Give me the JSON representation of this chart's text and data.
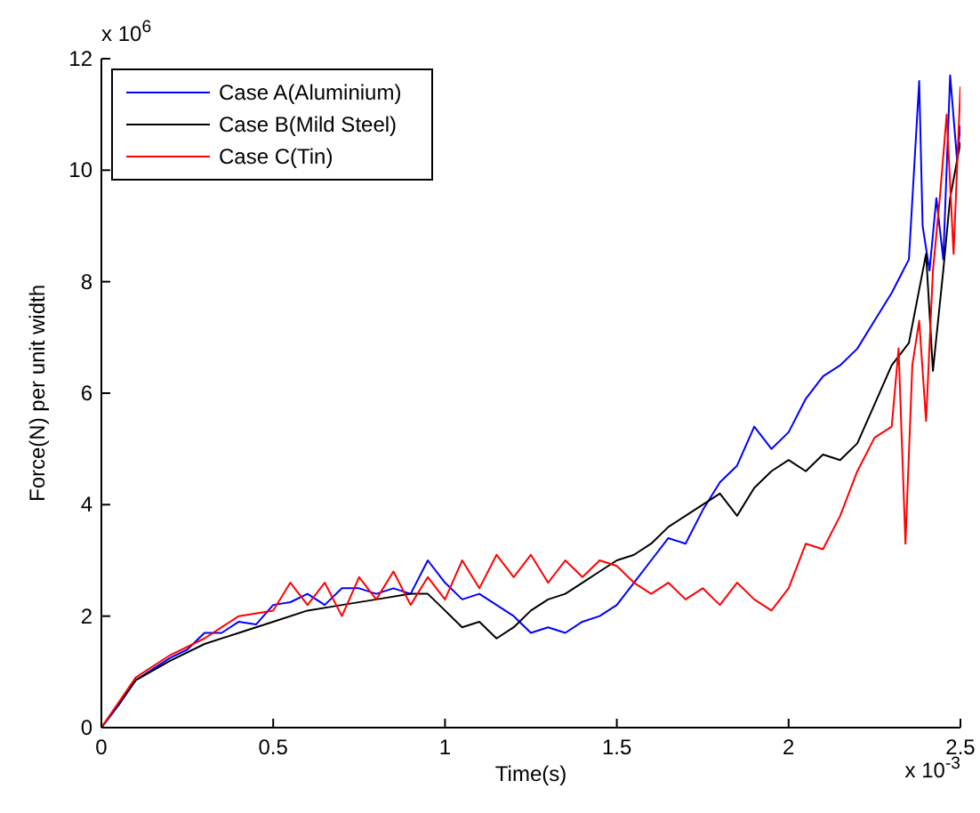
{
  "chart_data": {
    "type": "line",
    "xlabel": "Time(s)",
    "ylabel": "Force(N) per unit width",
    "annotations": [
      "x 10$^{6}$",
      "x 10$^{-3}$"
    ],
    "xlim": [
      0,
      2.5
    ],
    "xticks": [
      0,
      0.5,
      1,
      1.5,
      2,
      2.5
    ],
    "ylim": [
      0,
      12
    ],
    "yticks": [
      0,
      2,
      4,
      6,
      8,
      10,
      12
    ],
    "legend": "top left",
    "grid": false,
    "series": [
      {
        "name": "Case A(Aluminium)",
        "color": "#0000ff",
        "x": [
          0,
          0.05,
          0.1,
          0.15,
          0.2,
          0.25,
          0.3,
          0.35,
          0.4,
          0.45,
          0.5,
          0.55,
          0.6,
          0.65,
          0.7,
          0.75,
          0.8,
          0.85,
          0.9,
          0.95,
          1.0,
          1.05,
          1.1,
          1.15,
          1.2,
          1.25,
          1.3,
          1.35,
          1.4,
          1.45,
          1.5,
          1.55,
          1.6,
          1.65,
          1.7,
          1.75,
          1.8,
          1.85,
          1.9,
          1.95,
          2.0,
          2.05,
          2.1,
          2.15,
          2.2,
          2.25,
          2.3,
          2.35,
          2.38,
          2.39,
          2.41,
          2.43,
          2.45,
          2.47,
          2.49,
          2.5
        ],
        "values": [
          0,
          0.4,
          0.85,
          1.05,
          1.25,
          1.4,
          1.7,
          1.7,
          1.9,
          1.85,
          2.2,
          2.25,
          2.4,
          2.2,
          2.5,
          2.5,
          2.4,
          2.5,
          2.4,
          3.0,
          2.6,
          2.3,
          2.4,
          2.2,
          2.0,
          1.7,
          1.8,
          1.7,
          1.9,
          2.0,
          2.2,
          2.6,
          3.0,
          3.4,
          3.3,
          3.9,
          4.4,
          4.7,
          5.4,
          5.0,
          5.3,
          5.9,
          6.3,
          6.5,
          6.8,
          7.3,
          7.8,
          8.4,
          11.6,
          9.0,
          8.2,
          9.5,
          8.4,
          11.7,
          10.2,
          10.8
        ]
      },
      {
        "name": "Case B(Mild Steel)",
        "color": "#000000",
        "x": [
          0,
          0.1,
          0.2,
          0.3,
          0.4,
          0.5,
          0.6,
          0.7,
          0.8,
          0.9,
          0.95,
          1.0,
          1.05,
          1.1,
          1.15,
          1.2,
          1.25,
          1.3,
          1.35,
          1.4,
          1.45,
          1.5,
          1.55,
          1.6,
          1.65,
          1.7,
          1.75,
          1.8,
          1.85,
          1.9,
          1.95,
          2.0,
          2.05,
          2.1,
          2.15,
          2.2,
          2.25,
          2.3,
          2.35,
          2.4,
          2.42,
          2.45,
          2.47,
          2.5
        ],
        "values": [
          0,
          0.85,
          1.2,
          1.5,
          1.7,
          1.9,
          2.1,
          2.2,
          2.3,
          2.4,
          2.4,
          2.1,
          1.8,
          1.9,
          1.6,
          1.8,
          2.1,
          2.3,
          2.4,
          2.6,
          2.8,
          3.0,
          3.1,
          3.3,
          3.6,
          3.8,
          4.0,
          4.2,
          3.8,
          4.3,
          4.6,
          4.8,
          4.6,
          4.9,
          4.8,
          5.1,
          5.8,
          6.5,
          6.9,
          8.5,
          6.4,
          8.2,
          9.5,
          10.5
        ]
      },
      {
        "name": "Case C(Tin)",
        "color": "#ff0000",
        "x": [
          0,
          0.1,
          0.2,
          0.3,
          0.4,
          0.5,
          0.55,
          0.6,
          0.65,
          0.7,
          0.75,
          0.8,
          0.85,
          0.9,
          0.95,
          1.0,
          1.05,
          1.1,
          1.15,
          1.2,
          1.25,
          1.3,
          1.35,
          1.4,
          1.45,
          1.5,
          1.55,
          1.6,
          1.65,
          1.7,
          1.75,
          1.8,
          1.85,
          1.9,
          1.95,
          2.0,
          2.05,
          2.1,
          2.15,
          2.2,
          2.25,
          2.3,
          2.32,
          2.34,
          2.36,
          2.38,
          2.4,
          2.42,
          2.44,
          2.46,
          2.48,
          2.5
        ],
        "values": [
          0,
          0.9,
          1.3,
          1.6,
          2.0,
          2.1,
          2.6,
          2.2,
          2.6,
          2.0,
          2.7,
          2.3,
          2.8,
          2.2,
          2.7,
          2.3,
          3.0,
          2.5,
          3.1,
          2.7,
          3.1,
          2.6,
          3.0,
          2.7,
          3.0,
          2.9,
          2.6,
          2.4,
          2.6,
          2.3,
          2.5,
          2.2,
          2.6,
          2.3,
          2.1,
          2.5,
          3.3,
          3.2,
          3.8,
          4.6,
          5.2,
          5.4,
          6.8,
          3.3,
          6.5,
          7.3,
          5.5,
          8.2,
          9.5,
          11.0,
          8.5,
          11.5
        ]
      }
    ]
  }
}
